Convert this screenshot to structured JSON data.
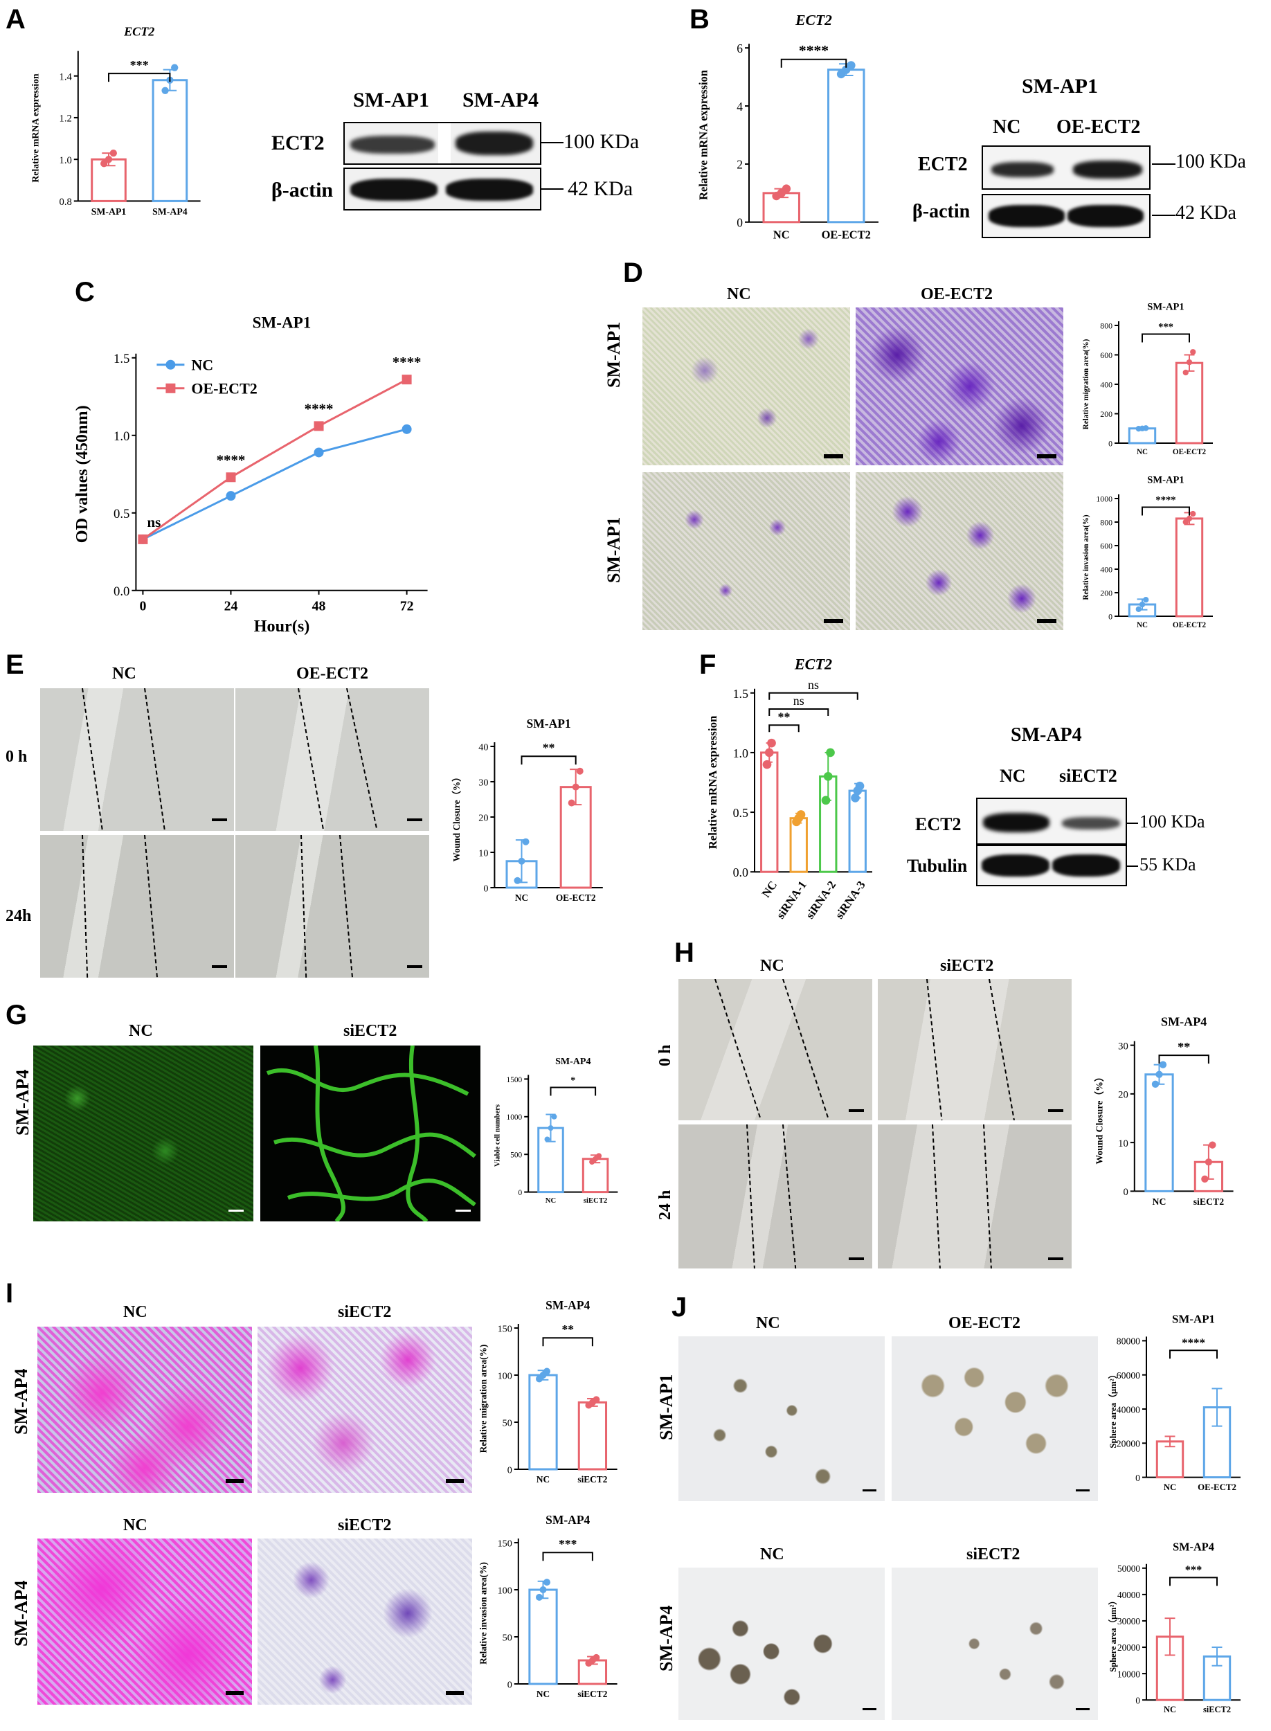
{
  "panels": {
    "A": {
      "letter": "A",
      "chart": {
        "type": "bar",
        "title": "ECT2",
        "ylabel": "Relative mRNA expression",
        "categories": [
          "SM-AP1",
          "SM-AP4"
        ],
        "values": [
          1.0,
          1.38
        ],
        "err": [
          0.03,
          0.05
        ],
        "points": [
          [
            0.98,
            1.0,
            1.03
          ],
          [
            1.33,
            1.38,
            1.44
          ]
        ],
        "ylim": [
          0.8,
          1.5
        ],
        "yticks": [
          "0.8",
          "1.0",
          "1.2",
          "1.4"
        ],
        "sig": "***",
        "colors": [
          "#e8646d",
          "#5da6e8"
        ]
      },
      "wb": {
        "cols": [
          "SM-AP1",
          "SM-AP4"
        ],
        "rows": [
          "ECT2",
          "β-actin"
        ],
        "sizes": [
          "100 KDa",
          "42 KDa"
        ]
      }
    },
    "B": {
      "letter": "B",
      "chart": {
        "type": "bar",
        "title": "ECT2",
        "ylabel": "Relative mRNA expression",
        "categories": [
          "NC",
          "OE-ECT2"
        ],
        "values": [
          1.0,
          5.25
        ],
        "err": [
          0.15,
          0.2
        ],
        "points": [
          [
            0.9,
            1.0,
            1.15
          ],
          [
            5.1,
            5.25,
            5.4
          ]
        ],
        "ylim": [
          0,
          6
        ],
        "yticks": [
          "0",
          "2",
          "4",
          "6"
        ],
        "sig": "****",
        "colors": [
          "#e8646d",
          "#5da6e8"
        ]
      },
      "wb": {
        "title": "SM-AP1",
        "cols": [
          "NC",
          "OE-ECT2"
        ],
        "rows": [
          "ECT2",
          "β-actin"
        ],
        "sizes": [
          "100 KDa",
          "42 KDa"
        ]
      }
    },
    "C": {
      "letter": "C",
      "chart": {
        "type": "line",
        "title": "SM-AP1",
        "xlabel": "Hour(s)",
        "ylabel": "OD values (450nm)",
        "x": [
          0,
          24,
          48,
          72
        ],
        "xticks": [
          "0",
          "24",
          "48",
          "72"
        ],
        "ylim": [
          0,
          1.5
        ],
        "yticks": [
          "0.0",
          "0.5",
          "1.0",
          "1.5"
        ],
        "series": [
          {
            "name": "NC",
            "values": [
              0.33,
              0.61,
              0.89,
              1.04
            ],
            "color": "#4a9be8"
          },
          {
            "name": "OE-ECT2",
            "values": [
              0.33,
              0.73,
              1.06,
              1.36
            ],
            "color": "#e8646d"
          }
        ],
        "sig": [
          "ns",
          "****",
          "****",
          "****"
        ]
      }
    },
    "D": {
      "letter": "D",
      "cols": [
        "NC",
        "OE-ECT2"
      ],
      "rows": [
        "SM-AP1",
        "SM-AP1"
      ],
      "chart1": {
        "type": "bar",
        "title": "SM-AP1",
        "ylabel": "Relative migration area(%)",
        "categories": [
          "NC",
          "OE-ECT2"
        ],
        "values": [
          100,
          545
        ],
        "err": [
          3,
          55
        ],
        "points": [
          [
            98,
            100,
            102
          ],
          [
            480,
            550,
            620
          ]
        ],
        "ylim": [
          0,
          800
        ],
        "yticks": [
          "0",
          "200",
          "400",
          "600",
          "800"
        ],
        "sig": "***",
        "colors": [
          "#5da6e8",
          "#e8646d"
        ]
      },
      "chart2": {
        "type": "bar",
        "title": "SM-AP1",
        "ylabel": "Relative invasion area(%)",
        "categories": [
          "NC",
          "OE-ECT2"
        ],
        "values": [
          100,
          830
        ],
        "err": [
          45,
          50
        ],
        "points": [
          [
            60,
            100,
            140
          ],
          [
            800,
            830,
            870
          ]
        ],
        "ylim": [
          0,
          1000
        ],
        "yticks": [
          "0",
          "200",
          "400",
          "600",
          "800",
          "1000"
        ],
        "sig": "****",
        "colors": [
          "#5da6e8",
          "#e8646d"
        ]
      }
    },
    "E": {
      "letter": "E",
      "cols": [
        "NC",
        "OE-ECT2"
      ],
      "rows": [
        "0 h",
        "24h"
      ],
      "chart": {
        "type": "bar",
        "title": "SM-AP1",
        "ylabel": "Wound Closure（%）",
        "categories": [
          "NC",
          "OE-ECT2"
        ],
        "values": [
          7.5,
          28.5
        ],
        "err": [
          6,
          5
        ],
        "points": [
          [
            2,
            7.5,
            13
          ],
          [
            24,
            28.5,
            33
          ]
        ],
        "ylim": [
          0,
          40
        ],
        "yticks": [
          "0",
          "10",
          "20",
          "30",
          "40"
        ],
        "sig": "**",
        "colors": [
          "#5da6e8",
          "#e8646d"
        ]
      }
    },
    "F": {
      "letter": "F",
      "chart": {
        "type": "bar",
        "title": "ECT2",
        "ylabel": "Relative mRNA expression",
        "categories": [
          "NC",
          "siRNA-1",
          "siRNA-2",
          "siRNA-3"
        ],
        "values": [
          1.0,
          0.45,
          0.8,
          0.68
        ],
        "err": [
          0.08,
          0.04,
          0.2,
          0.06
        ],
        "points": [
          [
            0.9,
            1.0,
            1.08
          ],
          [
            0.42,
            0.45,
            0.48
          ],
          [
            0.6,
            0.8,
            1.0
          ],
          [
            0.62,
            0.68,
            0.72
          ]
        ],
        "ylim": [
          0,
          1.5
        ],
        "yticks": [
          "0.0",
          "0.5",
          "1.0",
          "1.5"
        ],
        "sig": [
          "**",
          "ns",
          "ns"
        ],
        "colors": [
          "#e8646d",
          "#f0a030",
          "#4cc84a",
          "#5da6e8"
        ]
      },
      "wb": {
        "title": "SM-AP4",
        "cols": [
          "NC",
          "siECT2"
        ],
        "rows": [
          "ECT2",
          "Tubulin"
        ],
        "sizes": [
          "100 KDa",
          "55 KDa"
        ]
      }
    },
    "G": {
      "letter": "G",
      "cols": [
        "NC",
        "siECT2"
      ],
      "rows": [
        "SM-AP4"
      ],
      "chart": {
        "type": "bar",
        "title": "SM-AP4",
        "ylabel": "Viable cell numbers",
        "categories": [
          "NC",
          "siECT2"
        ],
        "values": [
          850,
          440
        ],
        "err": [
          180,
          50
        ],
        "points": [
          [
            700,
            850,
            1000
          ],
          [
            400,
            440,
            480
          ]
        ],
        "ylim": [
          0,
          1500
        ],
        "yticks": [
          "0",
          "500",
          "1000",
          "1500"
        ],
        "sig": "*",
        "colors": [
          "#5da6e8",
          "#e8646d"
        ]
      }
    },
    "H": {
      "letter": "H",
      "cols": [
        "NC",
        "siECT2"
      ],
      "rows": [
        "0 h",
        "24 h"
      ],
      "chart": {
        "type": "bar",
        "title": "SM-AP4",
        "ylabel": "Wound Closure（%）",
        "categories": [
          "NC",
          "siECT2"
        ],
        "values": [
          24,
          6
        ],
        "err": [
          2,
          3.5
        ],
        "points": [
          [
            22,
            24,
            26
          ],
          [
            2.5,
            6,
            9.5
          ]
        ],
        "ylim": [
          0,
          30
        ],
        "yticks": [
          "0",
          "10",
          "20",
          "30"
        ],
        "sig": "**",
        "colors": [
          "#5da6e8",
          "#e8646d"
        ]
      }
    },
    "I": {
      "letter": "I",
      "cols": [
        "NC",
        "siECT2"
      ],
      "rows": [
        "SM-AP4",
        "SM-AP4"
      ],
      "chart1": {
        "type": "bar",
        "title": "SM-AP4",
        "ylabel": "Relative migration area(%)",
        "categories": [
          "NC",
          "siECT2"
        ],
        "values": [
          100,
          71
        ],
        "err": [
          5,
          4
        ],
        "points": [
          [
            96,
            100,
            104
          ],
          [
            68,
            71,
            74
          ]
        ],
        "ylim": [
          0,
          150
        ],
        "yticks": [
          "0",
          "50",
          "100",
          "150"
        ],
        "sig": "**",
        "colors": [
          "#5da6e8",
          "#e8646d"
        ]
      },
      "chart2": {
        "type": "bar",
        "title": "SM-AP4",
        "ylabel": "Relative invasion area(%)",
        "categories": [
          "NC",
          "siECT2"
        ],
        "values": [
          100,
          25
        ],
        "err": [
          9,
          4
        ],
        "points": [
          [
            92,
            100,
            108
          ],
          [
            22,
            25,
            28
          ]
        ],
        "ylim": [
          0,
          150
        ],
        "yticks": [
          "0",
          "50",
          "100",
          "150"
        ],
        "sig": "***",
        "colors": [
          "#5da6e8",
          "#e8646d"
        ]
      }
    },
    "J": {
      "letter": "J",
      "cols1": [
        "NC",
        "OE-ECT2"
      ],
      "cols2": [
        "NC",
        "siECT2"
      ],
      "rows": [
        "SM-AP1",
        "SM-AP4"
      ],
      "chart1": {
        "type": "bar",
        "title": "SM-AP1",
        "ylabel": "Sphere area（μm²）",
        "categories": [
          "NC",
          "OE-ECT2"
        ],
        "values": [
          21000,
          41000
        ],
        "err": [
          3000,
          11000
        ],
        "ylim": [
          0,
          80000
        ],
        "yticks": [
          "0",
          "20000",
          "40000",
          "60000",
          "80000"
        ],
        "sig": "****",
        "colors": [
          "#e8646d",
          "#5da6e8"
        ]
      },
      "chart2": {
        "type": "bar",
        "title": "SM-AP4",
        "ylabel": "Sphere area（μm²）",
        "categories": [
          "NC",
          "siECT2"
        ],
        "values": [
          24000,
          16500
        ],
        "err": [
          7000,
          3500
        ],
        "ylim": [
          0,
          50000
        ],
        "yticks": [
          "0",
          "10000",
          "20000",
          "30000",
          "40000",
          "50000"
        ],
        "sig": "***",
        "colors": [
          "#e8646d",
          "#5da6e8"
        ]
      }
    }
  }
}
